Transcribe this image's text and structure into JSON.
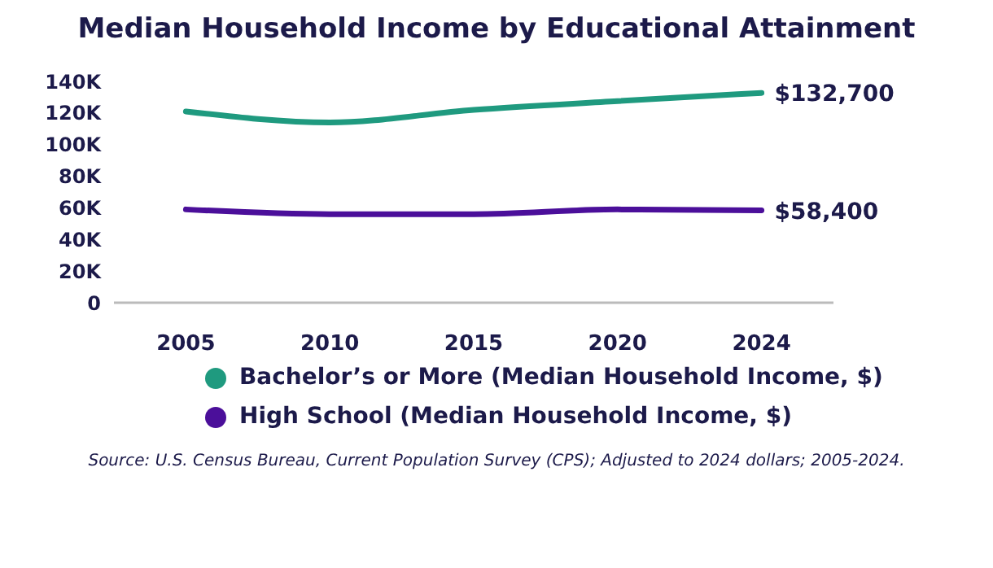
{
  "chart_data": {
    "type": "line",
    "title": "Median Household Income by Educational Attainment",
    "categories": [
      "2005",
      "2010",
      "2015",
      "2020",
      "2024"
    ],
    "series": [
      {
        "name": "Bachelor’s or More (Median Household Income, $)",
        "color": "#1f9a7f",
        "values": [
          121000,
          114000,
          122000,
          127500,
          132700
        ],
        "value_labels": [
          null,
          null,
          null,
          null,
          "$132,700"
        ]
      },
      {
        "name": "High School (Median Household Income, $)",
        "color": "#4b0f9a",
        "values": [
          59000,
          56000,
          56000,
          59000,
          58400
        ],
        "value_labels": [
          null,
          null,
          null,
          null,
          "$58,400"
        ]
      }
    ],
    "ylim": [
      0,
      140000
    ],
    "yticks": [
      {
        "value": 0,
        "label": "0"
      },
      {
        "value": 20000,
        "label": "20K"
      },
      {
        "value": 40000,
        "label": "40K"
      },
      {
        "value": 60000,
        "label": "60K"
      },
      {
        "value": 80000,
        "label": "80K"
      },
      {
        "value": 100000,
        "label": "100K"
      },
      {
        "value": 120000,
        "label": "120K"
      },
      {
        "value": 140000,
        "label": "140K"
      }
    ],
    "grid": false,
    "legend": "bottom",
    "marker": "none",
    "line_style": "solid",
    "annotations": [
      "Source: U.S. Census Bureau, Current Population Survey (CPS); Adjusted to 2024 dollars; 2005-2024."
    ]
  }
}
